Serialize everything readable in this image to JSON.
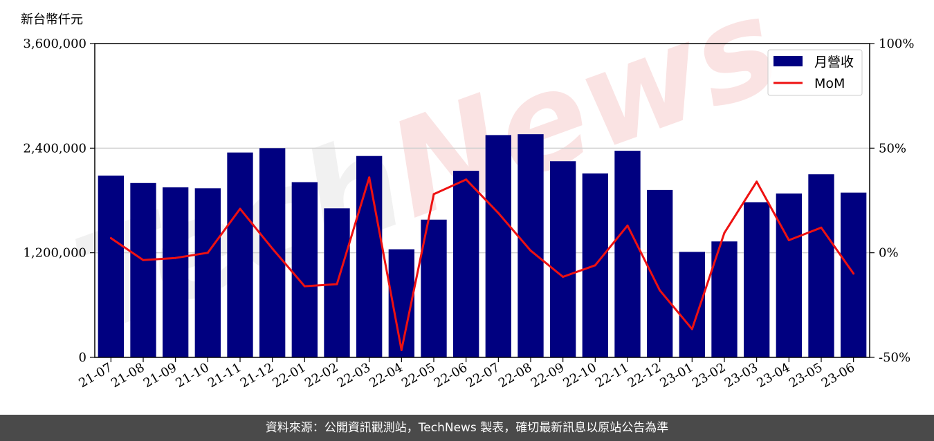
{
  "unit_label": "新台幣仟元",
  "footer": "資料來源：公開資訊觀測站，TechNews 製表，確切最新訊息以原站公告為準",
  "colors": {
    "bar": "#000080",
    "line": "#ee1111",
    "grid": "#d0d0d0"
  },
  "chart_data": {
    "type": "bar",
    "categories": [
      "21-07",
      "21-08",
      "21-09",
      "21-10",
      "21-11",
      "21-12",
      "22-01",
      "22-02",
      "22-03",
      "22-04",
      "22-05",
      "22-06",
      "22-07",
      "22-08",
      "22-09",
      "22-10",
      "22-11",
      "22-12",
      "23-01",
      "23-02",
      "23-03",
      "23-04",
      "23-05",
      "23-06"
    ],
    "series": [
      {
        "name": "月營收",
        "type": "bar",
        "axis": "left",
        "values": [
          2085000,
          2000000,
          1950000,
          1940000,
          2350000,
          2400000,
          2010000,
          1710000,
          2310000,
          1240000,
          1580000,
          2140000,
          2550000,
          2560000,
          2250000,
          2110000,
          2370000,
          1920000,
          1210000,
          1330000,
          1780000,
          1880000,
          2100000,
          1890000
        ]
      },
      {
        "name": "MoM",
        "type": "line",
        "axis": "right",
        "values": [
          7,
          -3.5,
          -2.5,
          0,
          21,
          2,
          -16,
          -15,
          36,
          -46.5,
          28,
          35,
          19,
          1,
          -11.5,
          -6,
          13,
          -18,
          -36.5,
          9.5,
          34,
          6,
          12,
          -10
        ]
      }
    ],
    "y_left": {
      "ticks": [
        "0",
        "1,200,000",
        "2,400,000",
        "3,600,000"
      ],
      "ylim": [
        0,
        3600000
      ]
    },
    "y_right": {
      "ticks": [
        "-50%",
        "0%",
        "50%",
        "100%"
      ],
      "ylim": [
        -50,
        100
      ]
    },
    "grid": "horizontal",
    "legend_position": "top-right",
    "watermark": "TechNews"
  }
}
